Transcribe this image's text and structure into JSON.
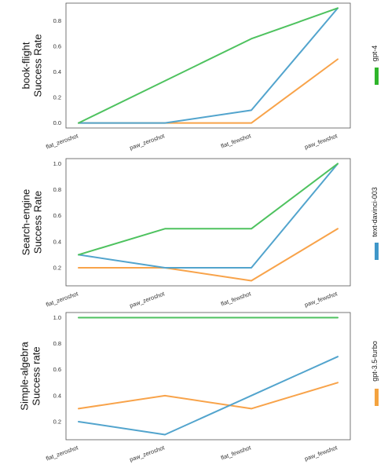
{
  "chart_data": [
    {
      "type": "line",
      "ylabel_lines": [
        "book-flight",
        "Success Rate"
      ],
      "categories": [
        "flat_zeroshot",
        "paw_zeroshot",
        "flat_fewshot",
        "paw_fewshot"
      ],
      "ylim": [
        0.0,
        0.9
      ],
      "yticks": [
        "0.0",
        "0.2",
        "0.4",
        "0.6",
        "0.8"
      ],
      "grid": false,
      "series": [
        {
          "name": "gpt-4",
          "color": "#4ec25f",
          "values": [
            0.0,
            0.33,
            0.66,
            0.9
          ]
        },
        {
          "name": "text-davinci-003",
          "color": "#52a4cd",
          "values": [
            0.0,
            0.0,
            0.1,
            0.9
          ]
        },
        {
          "name": "gpt-3.5-turbo",
          "color": "#f8a34a",
          "values": [
            0.0,
            0.0,
            0.0,
            0.5
          ]
        }
      ]
    },
    {
      "type": "line",
      "ylabel_lines": [
        "Search-engine",
        "Success Rate"
      ],
      "categories": [
        "flat_zeroshot",
        "paw_zeroshot",
        "flat_fewshot",
        "paw_fewshot"
      ],
      "ylim": [
        0.1,
        1.0
      ],
      "yticks": [
        "0.2",
        "0.4",
        "0.6",
        "0.8",
        "1.0"
      ],
      "grid": false,
      "series": [
        {
          "name": "gpt-4",
          "color": "#4ec25f",
          "values": [
            0.3,
            0.5,
            0.5,
            1.0
          ]
        },
        {
          "name": "text-davinci-003",
          "color": "#52a4cd",
          "values": [
            0.3,
            0.2,
            0.2,
            1.0
          ]
        },
        {
          "name": "gpt-3.5-turbo",
          "color": "#f8a34a",
          "values": [
            0.2,
            0.2,
            0.1,
            0.5
          ]
        }
      ]
    },
    {
      "type": "line",
      "ylabel_lines": [
        "Simple-algebra",
        "Success rate"
      ],
      "categories": [
        "flat_zeroshot",
        "paw_zeroshot",
        "flat_fewshot",
        "paw_fewshot"
      ],
      "ylim": [
        0.1,
        1.0
      ],
      "yticks": [
        "0.2",
        "0.4",
        "0.6",
        "0.8",
        "1.0"
      ],
      "grid": false,
      "series": [
        {
          "name": "gpt-4",
          "color": "#4ec25f",
          "values": [
            1.0,
            1.0,
            1.0,
            1.0
          ]
        },
        {
          "name": "text-davinci-003",
          "color": "#52a4cd",
          "values": [
            0.2,
            0.1,
            0.4,
            0.7
          ]
        },
        {
          "name": "gpt-3.5-turbo",
          "color": "#f8a34a",
          "values": [
            0.3,
            0.4,
            0.3,
            0.5
          ]
        }
      ]
    }
  ],
  "legend": {
    "placement": "right",
    "entries": [
      {
        "label": "gpt-4",
        "color": "#2fb52b"
      },
      {
        "label": "text-davinci-003",
        "color": "#3f97c9"
      },
      {
        "label": "gpt-3.5-turbo",
        "color": "#f4a33f"
      }
    ]
  }
}
